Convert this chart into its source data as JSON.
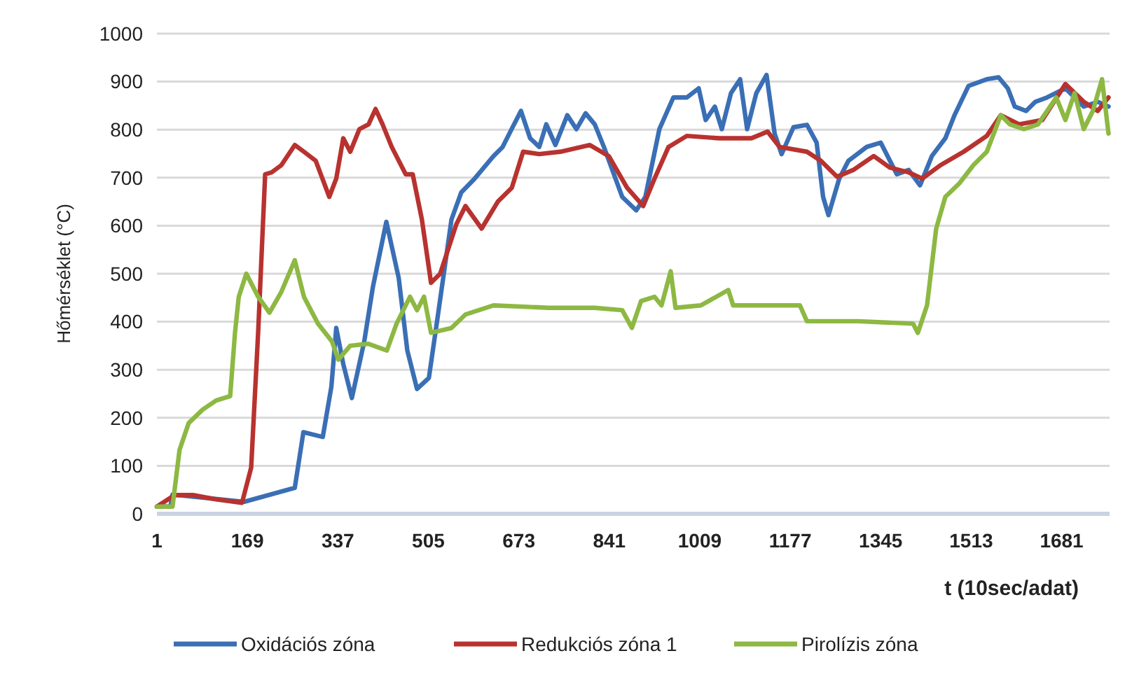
{
  "chart_data": {
    "type": "line",
    "xlabel": "t (10sec/adat)",
    "ylabel": "Hőmérséklet (°C)",
    "xlim": [
      1,
      1770
    ],
    "xticks": [
      1,
      169,
      337,
      505,
      673,
      841,
      1009,
      1177,
      1345,
      1513,
      1681
    ],
    "ylim": [
      0,
      1000
    ],
    "yticks": [
      0,
      100,
      200,
      300,
      400,
      500,
      600,
      700,
      800,
      900,
      1000
    ],
    "grid": "y",
    "legend": "bottom",
    "line_style": "solid",
    "series": [
      {
        "name": "Oxidációs zóna",
        "color": "#3a6fb5",
        "x": [
          1,
          26,
          30,
          163,
          257,
          273,
          309,
          325,
          334,
          347,
          363,
          386,
          402,
          427,
          450,
          466,
          484,
          506,
          523,
          548,
          566,
          591,
          626,
          643,
          660,
          677,
          694,
          711,
          724,
          741,
          763,
          780,
          797,
          814,
          831,
          865,
          891,
          908,
          934,
          960,
          985,
          1007,
          1020,
          1037,
          1050,
          1067,
          1084,
          1097,
          1114,
          1133,
          1148,
          1161,
          1183,
          1208,
          1226,
          1238,
          1248,
          1268,
          1285,
          1319,
          1345,
          1375,
          1397,
          1418,
          1440,
          1465,
          1482,
          1508,
          1542,
          1564,
          1581,
          1594,
          1615,
          1632,
          1654,
          1688,
          1722,
          1748,
          1768
        ],
        "values": [
          15,
          15,
          40,
          25,
          54,
          170,
          160,
          265,
          387,
          312,
          241,
          359,
          472,
          608,
          491,
          340,
          260,
          283,
          415,
          613,
          669,
          698,
          745,
          764,
          802,
          839,
          782,
          764,
          811,
          768,
          830,
          801,
          834,
          811,
          764,
          660,
          632,
          660,
          801,
          867,
          867,
          886,
          820,
          848,
          801,
          876,
          905,
          801,
          876,
          914,
          792,
          749,
          805,
          810,
          773,
          660,
          622,
          698,
          735,
          764,
          773,
          707,
          716,
          684,
          745,
          782,
          830,
          891,
          905,
          909,
          886,
          848,
          839,
          858,
          867,
          886,
          848,
          858,
          848
        ]
      },
      {
        "name": "Redukciós zóna 1",
        "color": "#b8322f",
        "x": [
          1,
          34,
          68,
          111,
          159,
          176,
          189,
          202,
          214,
          232,
          257,
          274,
          296,
          321,
          334,
          347,
          360,
          377,
          394,
          407,
          420,
          437,
          463,
          476,
          493,
          510,
          527,
          557,
          574,
          604,
          634,
          660,
          681,
          711,
          750,
          805,
          840,
          874,
          904,
          925,
          951,
          985,
          1045,
          1105,
          1135,
          1157,
          1208,
          1234,
          1264,
          1294,
          1332,
          1362,
          1397,
          1422,
          1456,
          1499,
          1542,
          1568,
          1602,
          1645,
          1688,
          1722,
          1748,
          1768
        ],
        "values": [
          15,
          39,
          39,
          30,
          23,
          96,
          378,
          707,
          711,
          726,
          768,
          754,
          735,
          660,
          698,
          782,
          754,
          801,
          811,
          843,
          811,
          764,
          707,
          707,
          613,
          481,
          500,
          603,
          641,
          594,
          650,
          679,
          754,
          749,
          754,
          768,
          745,
          679,
          641,
          698,
          764,
          787,
          782,
          782,
          796,
          764,
          754,
          735,
          702,
          716,
          745,
          721,
          711,
          698,
          726,
          754,
          787,
          830,
          811,
          820,
          895,
          858,
          839,
          867
        ]
      },
      {
        "name": "Pirolízis zóna",
        "color": "#8db843",
        "x": [
          1,
          30,
          43,
          60,
          86,
          111,
          137,
          146,
          153,
          167,
          189,
          210,
          232,
          257,
          274,
          300,
          326,
          338,
          360,
          394,
          428,
          446,
          471,
          484,
          497,
          510,
          548,
          574,
          626,
          728,
          814,
          865,
          883,
          900,
          925,
          938,
          955,
          964,
          1011,
          1062,
          1071,
          1131,
          1195,
          1208,
          1302,
          1405,
          1414,
          1431,
          1448,
          1465,
          1491,
          1517,
          1542,
          1568,
          1585,
          1611,
          1637,
          1671,
          1688,
          1705,
          1722,
          1739,
          1756,
          1768
        ],
        "values": [
          15,
          15,
          133,
          189,
          217,
          236,
          245,
          377,
          452,
          500,
          452,
          419,
          462,
          528,
          452,
          396,
          359,
          321,
          350,
          354,
          340,
          396,
          452,
          424,
          452,
          377,
          387,
          415,
          434,
          429,
          429,
          424,
          387,
          443,
          452,
          434,
          505,
          429,
          434,
          466,
          434,
          434,
          434,
          401,
          401,
          396,
          377,
          434,
          594,
          660,
          688,
          726,
          754,
          830,
          811,
          801,
          811,
          867,
          820,
          876,
          801,
          839,
          905,
          792
        ]
      }
    ]
  }
}
